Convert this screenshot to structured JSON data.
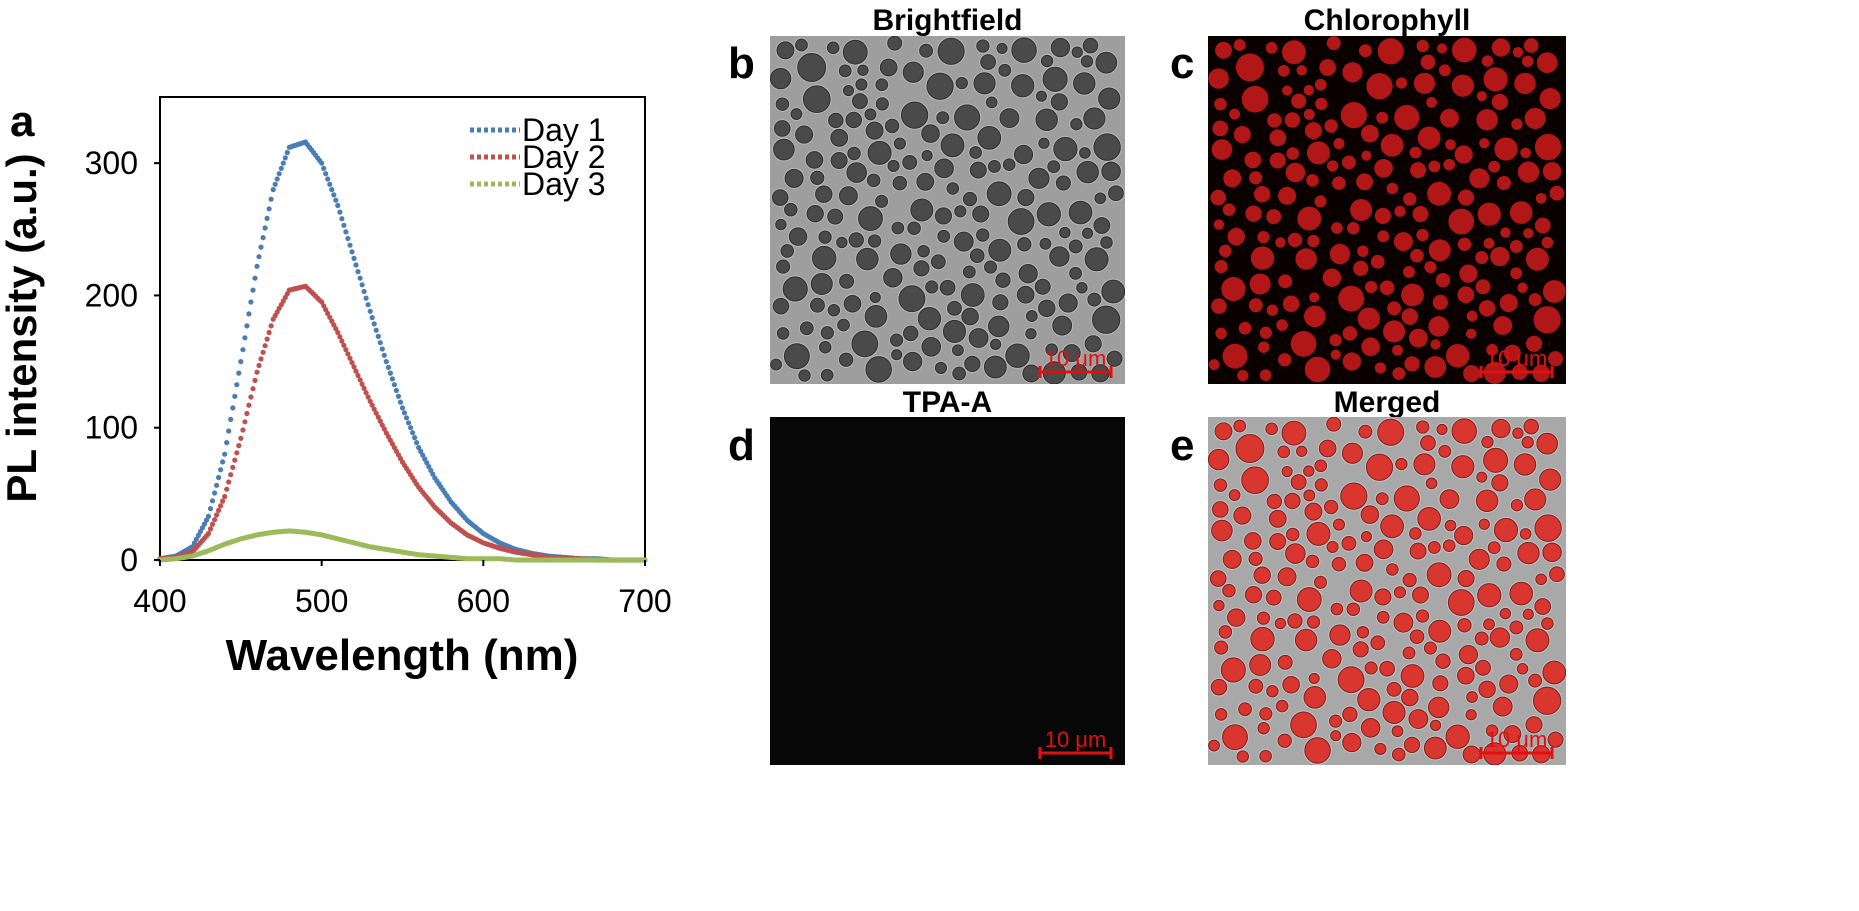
{
  "panels": {
    "a": {
      "letter": "a"
    },
    "b": {
      "letter": "b",
      "title": "Brightfield",
      "scale_bar": "10 μm"
    },
    "c": {
      "letter": "c",
      "title": "Chlorophyll",
      "scale_bar": "10 μm"
    },
    "d": {
      "letter": "d",
      "title": "TPA-A",
      "scale_bar": "10 μm"
    },
    "e": {
      "letter": "e",
      "title": "Merged",
      "scale_bar": "10 μm"
    }
  },
  "chart_data": {
    "type": "scatter",
    "title": "",
    "xlabel": "Wavelength (nm)",
    "ylabel": "PL intensity (a.u.)",
    "xlim": [
      400,
      700
    ],
    "ylim": [
      0,
      350
    ],
    "xticks": [
      400,
      500,
      600,
      700
    ],
    "yticks": [
      0,
      100,
      200,
      300
    ],
    "legend_position": "top-right",
    "grid": false,
    "series": [
      {
        "name": "Day 1",
        "color": "#4a7db5",
        "x": [
          400,
          410,
          420,
          430,
          440,
          450,
          460,
          470,
          480,
          490,
          500,
          510,
          520,
          530,
          540,
          550,
          560,
          570,
          580,
          590,
          600,
          610,
          620,
          630,
          640,
          650,
          660,
          670,
          680,
          690,
          700
        ],
        "values": [
          1,
          3,
          10,
          33,
          80,
          150,
          222,
          280,
          312,
          316,
          300,
          268,
          228,
          188,
          150,
          115,
          85,
          62,
          44,
          30,
          20,
          13,
          8,
          5,
          3,
          2,
          1,
          1,
          0,
          0,
          0
        ]
      },
      {
        "name": "Day 2",
        "color": "#c0504d",
        "x": [
          400,
          410,
          420,
          430,
          440,
          450,
          460,
          470,
          480,
          490,
          500,
          510,
          520,
          530,
          540,
          550,
          560,
          570,
          580,
          590,
          600,
          610,
          620,
          630,
          640,
          650,
          660,
          670,
          680,
          690,
          700
        ],
        "values": [
          1,
          2,
          6,
          20,
          48,
          92,
          142,
          182,
          204,
          207,
          195,
          172,
          146,
          120,
          96,
          74,
          55,
          40,
          28,
          19,
          13,
          9,
          6,
          4,
          2,
          1,
          1,
          0,
          0,
          0,
          0
        ]
      },
      {
        "name": "Day 3",
        "color": "#9bbb59",
        "x": [
          400,
          410,
          420,
          430,
          440,
          450,
          460,
          470,
          480,
          490,
          500,
          510,
          520,
          530,
          540,
          550,
          560,
          570,
          580,
          590,
          600,
          610,
          620,
          630,
          640,
          650,
          660,
          670,
          680,
          690,
          700
        ],
        "values": [
          0,
          1,
          3,
          7,
          12,
          16,
          19,
          21,
          22,
          21,
          19,
          16,
          13,
          10,
          8,
          6,
          4,
          3,
          2,
          1,
          1,
          1,
          0,
          0,
          0,
          0,
          0,
          0,
          0,
          0,
          0
        ]
      }
    ]
  },
  "colors": {
    "scale_bar": "#e01010",
    "chlorophyll_cells": "#c41a1a",
    "merged_cells": "#d8362f",
    "brightfield_bg": "#9e9e9e",
    "tpa_bg": "#070707"
  }
}
